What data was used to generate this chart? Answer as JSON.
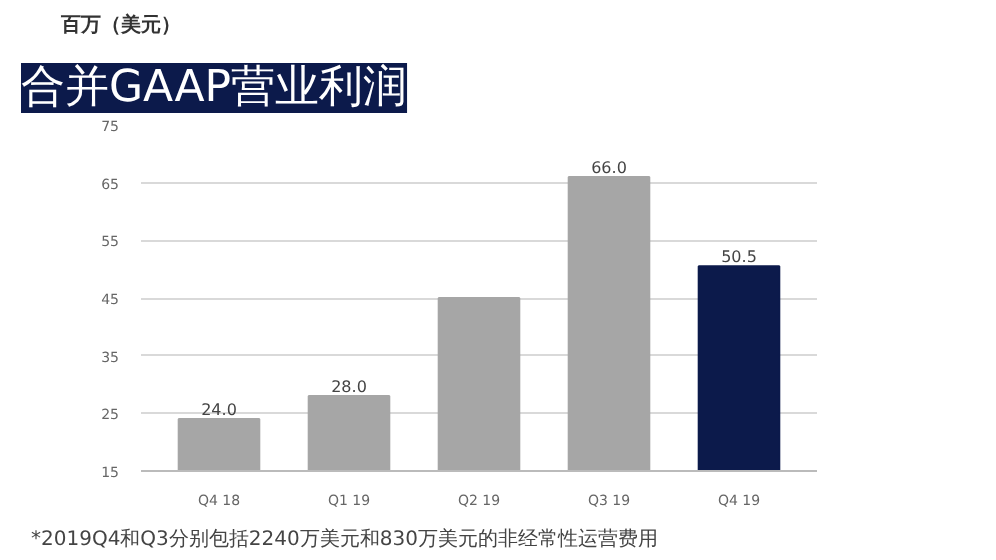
{
  "chart_data": {
    "type": "bar",
    "title": "合并GAAP营业利润",
    "ylabel": "百万（美元）",
    "categories": [
      "Q4 18",
      "Q1 19",
      "Q2 19",
      "Q3 19",
      "Q4 19"
    ],
    "values": [
      24.0,
      28.0,
      45,
      66.0,
      50.5
    ],
    "value_labels": [
      "24.0",
      "28.0",
      null,
      "66.0",
      "50.5"
    ],
    "colors": [
      "#a6a6a6",
      "#a6a6a6",
      "#a6a6a6",
      "#a6a6a6",
      "#0c1a4b"
    ],
    "ylim": [
      15,
      75
    ],
    "yticks": [
      15,
      25,
      35,
      45,
      55,
      65,
      75
    ],
    "grid": "y",
    "annotations": [
      "*2019Q4和Q3分别包括2240万美元和830万美元的非经常性运营费用"
    ]
  }
}
